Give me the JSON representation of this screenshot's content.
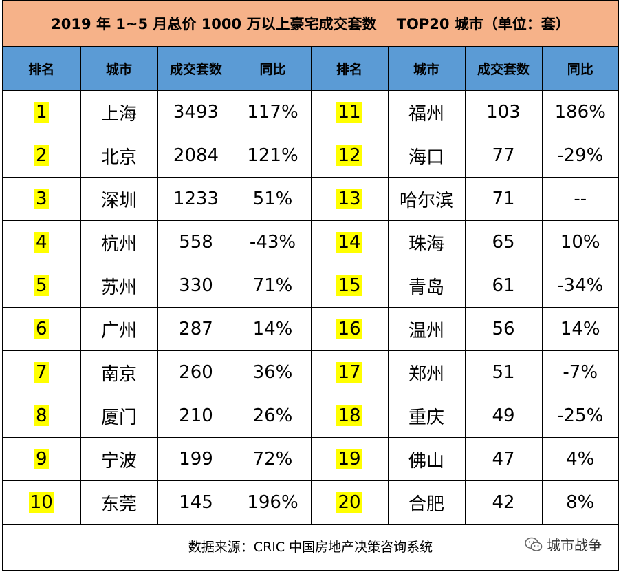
{
  "title": "2019 年 1~5 月总价 1000 万以上豪宅成交套数    TOP20 城市（单位：套）",
  "headers": [
    "排名",
    "城市",
    "成交套数",
    "同比",
    "排名",
    "城市",
    "成交套数",
    "同比"
  ],
  "rows": [
    {
      "l": {
        "rank": "1",
        "city": "上海",
        "count": "3493",
        "yoy": "117%"
      },
      "r": {
        "rank": "11",
        "city": "福州",
        "count": "103",
        "yoy": "186%"
      }
    },
    {
      "l": {
        "rank": "2",
        "city": "北京",
        "count": "2084",
        "yoy": "121%"
      },
      "r": {
        "rank": "12",
        "city": "海口",
        "count": "77",
        "yoy": "-29%"
      }
    },
    {
      "l": {
        "rank": "3",
        "city": "深圳",
        "count": "1233",
        "yoy": "51%"
      },
      "r": {
        "rank": "13",
        "city": "哈尔滨",
        "count": "71",
        "yoy": "--"
      }
    },
    {
      "l": {
        "rank": "4",
        "city": "杭州",
        "count": "558",
        "yoy": "-43%"
      },
      "r": {
        "rank": "14",
        "city": "珠海",
        "count": "65",
        "yoy": "10%"
      }
    },
    {
      "l": {
        "rank": "5",
        "city": "苏州",
        "count": "330",
        "yoy": "71%"
      },
      "r": {
        "rank": "15",
        "city": "青岛",
        "count": "61",
        "yoy": "-34%"
      }
    },
    {
      "l": {
        "rank": "6",
        "city": "广州",
        "count": "287",
        "yoy": "14%"
      },
      "r": {
        "rank": "16",
        "city": "温州",
        "count": "56",
        "yoy": "14%"
      }
    },
    {
      "l": {
        "rank": "7",
        "city": "南京",
        "count": "260",
        "yoy": "36%"
      },
      "r": {
        "rank": "17",
        "city": "郑州",
        "count": "51",
        "yoy": "-7%"
      }
    },
    {
      "l": {
        "rank": "8",
        "city": "厦门",
        "count": "210",
        "yoy": "26%"
      },
      "r": {
        "rank": "18",
        "city": "重庆",
        "count": "49",
        "yoy": "-25%"
      }
    },
    {
      "l": {
        "rank": "9",
        "city": "宁波",
        "count": "199",
        "yoy": "72%"
      },
      "r": {
        "rank": "19",
        "city": "佛山",
        "count": "47",
        "yoy": "4%"
      }
    },
    {
      "l": {
        "rank": "10",
        "city": "东莞",
        "count": "145",
        "yoy": "196%"
      },
      "r": {
        "rank": "20",
        "city": "合肥",
        "count": "42",
        "yoy": "8%"
      }
    }
  ],
  "source": "数据来源：CRIC 中国房地产决策咨询系统",
  "brand": {
    "icon": "wechat-icon",
    "text": "城市战争"
  },
  "colors": {
    "title_bg": "#f6b289",
    "header_bg": "#5b9bd5",
    "rank_highlight": "#ffff00"
  }
}
